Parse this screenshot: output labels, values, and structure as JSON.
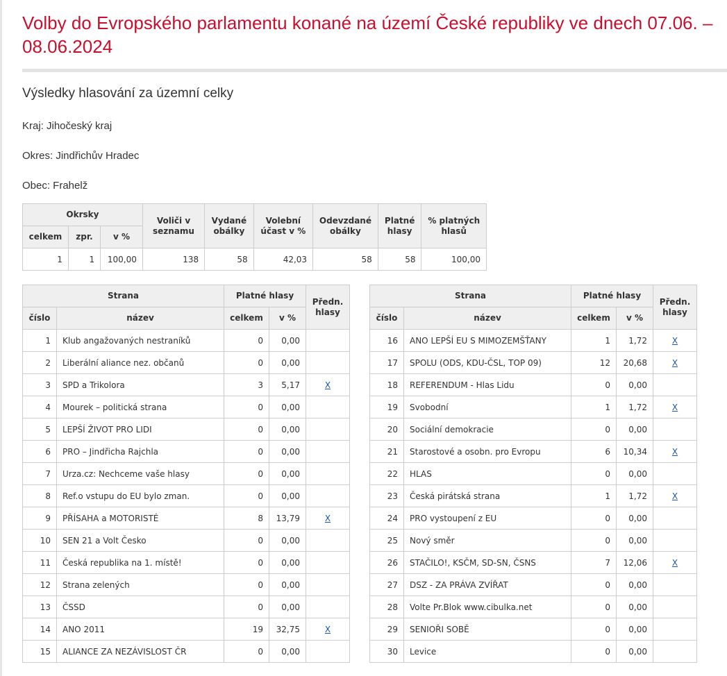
{
  "title": "Volby do Evropského parlamentu konané na území České republiky ve dnech 07.06. – 08.06.2024",
  "subtitle": "Výsledky hlasování za územní celky",
  "kraj": "Kraj: Jihočeský kraj",
  "okres": "Okres: Jindřichův Hradec",
  "obec": "Obec: Frahelž",
  "summary": {
    "headers": {
      "okrsky": "Okrsky",
      "celkem": "celkem",
      "zpr": "zpr.",
      "vpct": "v %",
      "volici": "Voliči v seznamu",
      "vydane": "Vydané obálky",
      "ucast": "Volební účast v %",
      "odevzdane": "Odevzdané obálky",
      "platne": "Platné hlasy",
      "pct_platnych": "% platných hlasů"
    },
    "values": [
      "1",
      "1",
      "100,00",
      "138",
      "58",
      "42,03",
      "58",
      "58",
      "100,00"
    ]
  },
  "parties_headers": {
    "strana": "Strana",
    "platne": "Platné hlasy",
    "predn": "Předn. hlasy",
    "cislo": "číslo",
    "nazev": "název",
    "celkem": "celkem",
    "vpct": "v %"
  },
  "parties_left": [
    [
      "1",
      "Klub angažovaných nestraníků",
      "0",
      "0,00",
      ""
    ],
    [
      "2",
      "Liberální aliance nez. občanů",
      "0",
      "0,00",
      ""
    ],
    [
      "3",
      "SPD a Trikolora",
      "3",
      "5,17",
      "X"
    ],
    [
      "4",
      "Mourek – politická strana",
      "0",
      "0,00",
      ""
    ],
    [
      "5",
      "LEPŠÍ ŽIVOT PRO LIDI",
      "0",
      "0,00",
      ""
    ],
    [
      "6",
      "PRO – Jindřicha Rajchla",
      "0",
      "0,00",
      ""
    ],
    [
      "7",
      "Urza.cz: Nechceme vaše hlasy",
      "0",
      "0,00",
      ""
    ],
    [
      "8",
      "Ref.o vstupu do EU bylo zman.",
      "0",
      "0,00",
      ""
    ],
    [
      "9",
      "PŘÍSAHA a MOTORISTÉ",
      "8",
      "13,79",
      "X"
    ],
    [
      "10",
      "SEN 21 a Volt Česko",
      "0",
      "0,00",
      ""
    ],
    [
      "11",
      "Česká republika na 1. místě!",
      "0",
      "0,00",
      ""
    ],
    [
      "12",
      "Strana zelených",
      "0",
      "0,00",
      ""
    ],
    [
      "13",
      "ČSSD",
      "0",
      "0,00",
      ""
    ],
    [
      "14",
      "ANO 2011",
      "19",
      "32,75",
      "X"
    ],
    [
      "15",
      "ALIANCE ZA NEZÁVISLOST ČR",
      "0",
      "0,00",
      ""
    ]
  ],
  "parties_right": [
    [
      "16",
      "ANO LEPŠÍ EU S MIMOZEMŠŤANY",
      "1",
      "1,72",
      "X"
    ],
    [
      "17",
      "SPOLU (ODS, KDU-ČSL, TOP 09)",
      "12",
      "20,68",
      "X"
    ],
    [
      "18",
      "REFERENDUM - Hlas Lidu",
      "0",
      "0,00",
      ""
    ],
    [
      "19",
      "Svobodní",
      "1",
      "1,72",
      "X"
    ],
    [
      "20",
      "Sociální demokracie",
      "0",
      "0,00",
      ""
    ],
    [
      "21",
      "Starostové a osobn. pro Evropu",
      "6",
      "10,34",
      "X"
    ],
    [
      "22",
      "HLAS",
      "0",
      "0,00",
      ""
    ],
    [
      "23",
      "Česká pirátská strana",
      "1",
      "1,72",
      "X"
    ],
    [
      "24",
      "PRO vystoupení z EU",
      "0",
      "0,00",
      ""
    ],
    [
      "25",
      "Nový směr",
      "0",
      "0,00",
      ""
    ],
    [
      "26",
      "STAČILO!, KSČM, SD-SN, ČSNS",
      "7",
      "12,06",
      "X"
    ],
    [
      "27",
      "DSZ - ZA PRÁVA ZVÍŘAT",
      "0",
      "0,00",
      ""
    ],
    [
      "28",
      "Volte Pr.Blok www.cibulka.net",
      "0",
      "0,00",
      ""
    ],
    [
      "29",
      "SENIOŘI SOBĚ",
      "0",
      "0,00",
      ""
    ],
    [
      "30",
      "Levice",
      "0",
      "0,00",
      ""
    ]
  ]
}
